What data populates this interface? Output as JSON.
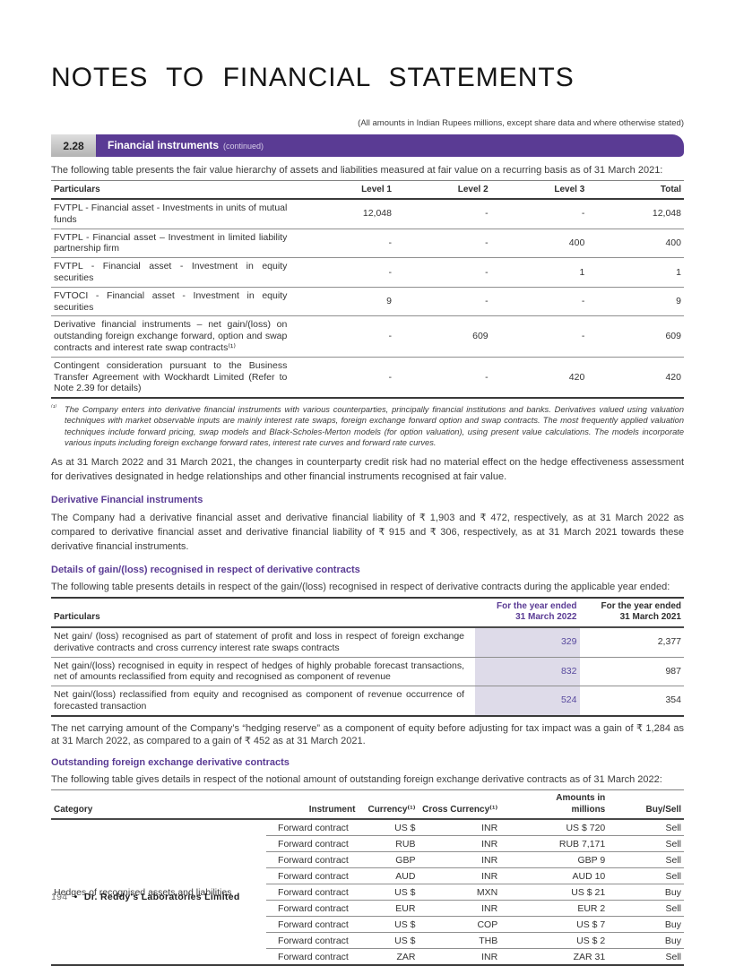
{
  "colors": {
    "purple": "#5a3b94",
    "lavender": "#dedbe9",
    "value_purple": "#584a9e"
  },
  "page": {
    "title": "NOTES TO FINANCIAL STATEMENTS",
    "amounts_note": "(All amounts in Indian Rupees millions, except share data and where otherwise stated)",
    "footer_page": "194",
    "footer_bullet": "•",
    "footer_company": "Dr. Reddy's Laboratories Limited"
  },
  "banner": {
    "number": "2.28",
    "title": "Financial instruments",
    "suffix": "(continued)"
  },
  "fair_value": {
    "intro": "The following table presents the fair value hierarchy of assets and liabilities measured at fair value on a recurring basis as of 31 March 2021:",
    "headers": [
      "Particulars",
      "Level 1",
      "Level 2",
      "Level 3",
      "Total"
    ],
    "rows": [
      {
        "particulars": "FVTPL - Financial asset - Investments in units of mutual funds",
        "level1": "12,048",
        "level2": "-",
        "level3": "-",
        "total": "12,048"
      },
      {
        "particulars": "FVTPL - Financial asset – Investment in limited liability partnership firm",
        "level1": "-",
        "level2": "-",
        "level3": "400",
        "total": "400"
      },
      {
        "particulars": "FVTPL - Financial asset - Investment in equity securities",
        "level1": "-",
        "level2": "-",
        "level3": "1",
        "total": "1"
      },
      {
        "particulars": "FVTOCI - Financial asset - Investment in equity securities",
        "level1": "9",
        "level2": "-",
        "level3": "-",
        "total": "9"
      },
      {
        "particulars": "Derivative financial instruments – net gain/(loss) on outstanding foreign exchange forward, option and swap contracts and interest rate swap contracts⁽¹⁾",
        "level1": "-",
        "level2": "609",
        "level3": "-",
        "total": "609"
      },
      {
        "particulars": "Contingent consideration pursuant to the Business Transfer Agreement with Wockhardt Limited (Refer to Note 2.39 for details)",
        "level1": "-",
        "level2": "-",
        "level3": "420",
        "total": "420"
      }
    ],
    "footnote_marker": "⁽¹⁾",
    "footnote": "The Company enters into derivative financial instruments with various counterparties, principally financial institutions and banks. Derivatives valued using valuation techniques with market observable inputs are mainly interest rate swaps, foreign exchange forward option and swap contracts. The most frequently applied valuation techniques include forward pricing, swap models and Black-Scholes-Merton models (for option valuation), using present value calculations. The models incorporate various inputs including foreign exchange forward rates, interest rate curves and forward rate curves."
  },
  "credit_risk_para": "As at 31 March 2022 and 31 March 2021, the changes in counterparty credit risk had no material effect on the hedge effectiveness assessment for derivatives designated in hedge relationships and other financial instruments recognised at fair value.",
  "derivative_section": {
    "heading": "Derivative Financial instruments",
    "body": "The Company had a derivative financial asset and derivative financial liability of ₹ 1,903 and ₹ 472, respectively, as at 31 March 2022 as compared to derivative financial asset and derivative financial liability of ₹ 915 and ₹ 306, respectively, as at 31 March 2021 towards these derivative financial instruments."
  },
  "gain_loss": {
    "heading": "Details of gain/(loss) recognised in respect of derivative contracts",
    "intro": "The following table presents details in respect of the gain/(loss) recognised in respect of derivative contracts during the applicable year ended:",
    "headers": [
      "Particulars",
      "For the year ended\n31 March 2022",
      "For the year ended\n31 March 2021"
    ],
    "rows": [
      {
        "particulars": "Net gain/ (loss) recognised as part of statement of profit and loss in respect of foreign exchange derivative contracts and cross currency interest rate swaps contracts",
        "fy2022": "329",
        "fy2021": "2,377"
      },
      {
        "particulars": "Net gain/(loss) recognised in equity in respect of hedges of highly probable forecast transactions, net of amounts reclassified from equity and recognised as component of revenue",
        "fy2022": "832",
        "fy2021": "987"
      },
      {
        "particulars": "Net gain/(loss) reclassified from equity and recognised as component of revenue occurrence of forecasted transaction",
        "fy2022": "524",
        "fy2021": "354"
      }
    ],
    "after": "The net carrying amount of the Company’s “hedging reserve” as a component of equity before adjusting for tax impact was a gain of ₹ 1,284 as at 31 March 2022, as compared to a gain of ₹ 452 as at 31 March 2021."
  },
  "fx_contracts": {
    "heading": "Outstanding foreign exchange derivative contracts",
    "intro": "The following table gives details in respect of the notional amount of outstanding foreign exchange derivative contracts as of 31 March 2022:",
    "headers": [
      "Category",
      "Instrument",
      "Currency⁽¹⁾",
      "Cross Currency⁽¹⁾",
      "Amounts in\nmillions",
      "Buy/Sell"
    ],
    "category": "Hedges of recognised assets and liabilities",
    "rows": [
      {
        "instrument": "Forward contract",
        "currency": "US $",
        "cross": "INR",
        "amount": "US $ 720",
        "buysell": "Sell"
      },
      {
        "instrument": "Forward contract",
        "currency": "RUB",
        "cross": "INR",
        "amount": "RUB 7,171",
        "buysell": "Sell"
      },
      {
        "instrument": "Forward contract",
        "currency": "GBP",
        "cross": "INR",
        "amount": "GBP 9",
        "buysell": "Sell"
      },
      {
        "instrument": "Forward contract",
        "currency": "AUD",
        "cross": "INR",
        "amount": "AUD 10",
        "buysell": "Sell"
      },
      {
        "instrument": "Forward contract",
        "currency": "US $",
        "cross": "MXN",
        "amount": "US $ 21",
        "buysell": "Buy"
      },
      {
        "instrument": "Forward contract",
        "currency": "EUR",
        "cross": "INR",
        "amount": "EUR 2",
        "buysell": "Sell"
      },
      {
        "instrument": "Forward contract",
        "currency": "US $",
        "cross": "COP",
        "amount": "US $ 7",
        "buysell": "Buy"
      },
      {
        "instrument": "Forward contract",
        "currency": "US $",
        "cross": "THB",
        "amount": "US $ 2",
        "buysell": "Buy"
      },
      {
        "instrument": "Forward contract",
        "currency": "ZAR",
        "cross": "INR",
        "amount": "ZAR 31",
        "buysell": "Sell"
      }
    ]
  }
}
